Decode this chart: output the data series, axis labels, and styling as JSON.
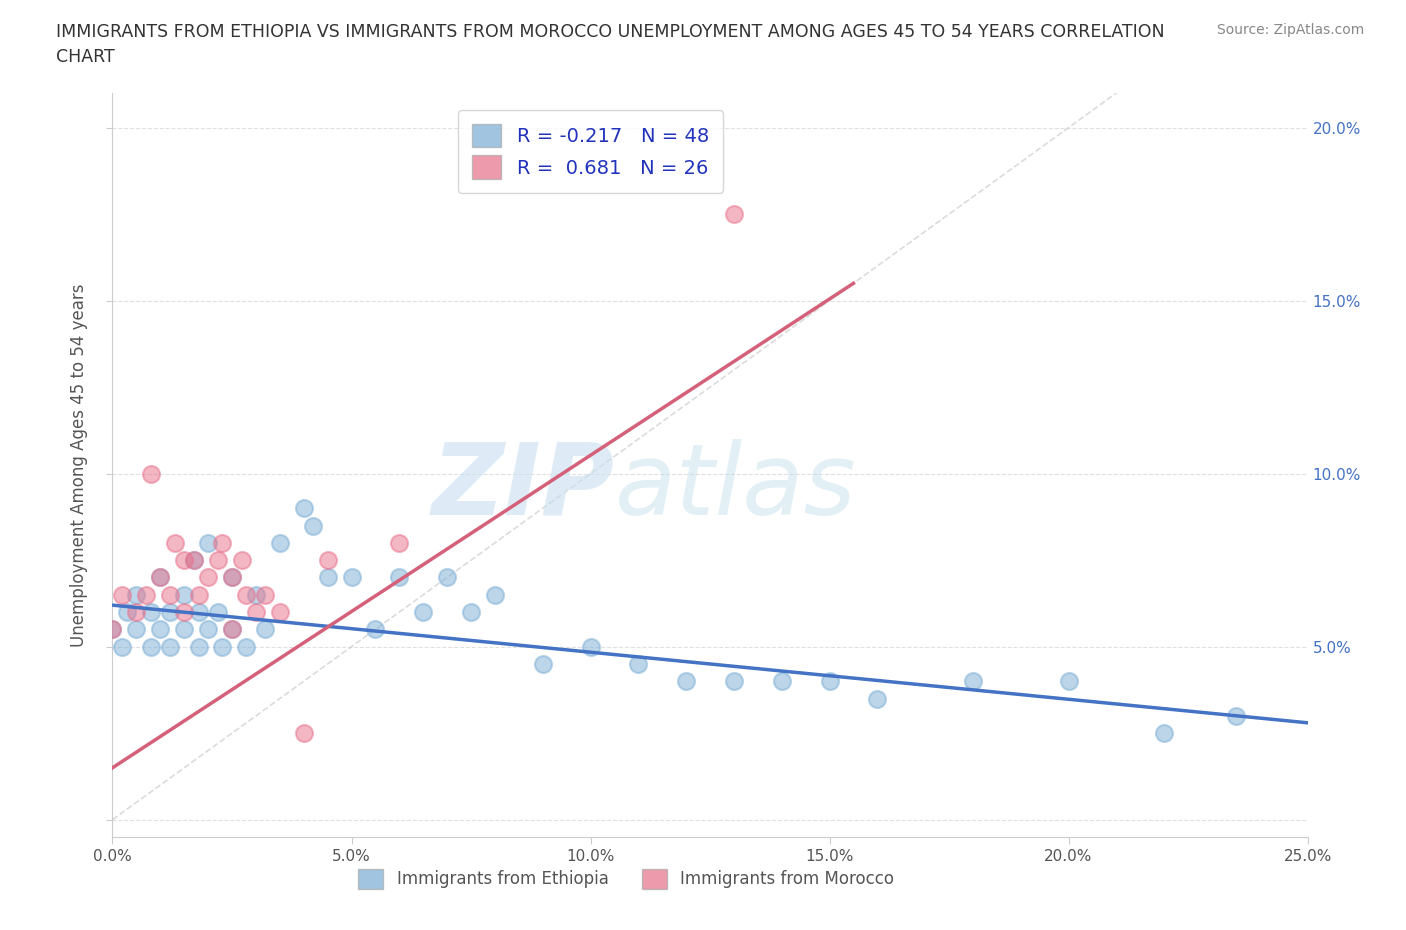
{
  "title_line1": "IMMIGRANTS FROM ETHIOPIA VS IMMIGRANTS FROM MOROCCO UNEMPLOYMENT AMONG AGES 45 TO 54 YEARS CORRELATION",
  "title_line2": "CHART",
  "source": "Source: ZipAtlas.com",
  "ylabel": "Unemployment Among Ages 45 to 54 years",
  "xlim": [
    0.0,
    0.25
  ],
  "ylim": [
    -0.005,
    0.21
  ],
  "xticks": [
    0.0,
    0.05,
    0.1,
    0.15,
    0.2,
    0.25
  ],
  "xticklabels": [
    "0.0%",
    "5.0%",
    "10.0%",
    "15.0%",
    "20.0%",
    "25.0%"
  ],
  "yticks_right": [
    0.05,
    0.1,
    0.15,
    0.2
  ],
  "yticklabels_right": [
    "5.0%",
    "10.0%",
    "15.0%",
    "20.0%"
  ],
  "background_color": "#ffffff",
  "grid_color": "#dddddd",
  "ethiopia_color": "#7aadd4",
  "morocco_color": "#e8708a",
  "ethiopia_line_color": "#4472c4",
  "morocco_line_color": "#d4607a",
  "ref_line_color": "#cccccc",
  "legend_ethiopia_label": "R = -0.217   N = 48",
  "legend_morocco_label": "R =  0.681   N = 26",
  "watermark_zip": "ZIP",
  "watermark_atlas": "atlas",
  "ethiopia_scatter_x": [
    0.0,
    0.002,
    0.003,
    0.005,
    0.005,
    0.008,
    0.008,
    0.01,
    0.01,
    0.012,
    0.012,
    0.015,
    0.015,
    0.017,
    0.018,
    0.018,
    0.02,
    0.02,
    0.022,
    0.023,
    0.025,
    0.025,
    0.028,
    0.03,
    0.032,
    0.035,
    0.04,
    0.042,
    0.045,
    0.05,
    0.055,
    0.06,
    0.065,
    0.07,
    0.075,
    0.08,
    0.09,
    0.1,
    0.11,
    0.12,
    0.13,
    0.14,
    0.15,
    0.16,
    0.18,
    0.2,
    0.22,
    0.235
  ],
  "ethiopia_scatter_y": [
    0.055,
    0.05,
    0.06,
    0.065,
    0.055,
    0.06,
    0.05,
    0.07,
    0.055,
    0.06,
    0.05,
    0.065,
    0.055,
    0.075,
    0.06,
    0.05,
    0.08,
    0.055,
    0.06,
    0.05,
    0.07,
    0.055,
    0.05,
    0.065,
    0.055,
    0.08,
    0.09,
    0.085,
    0.07,
    0.07,
    0.055,
    0.07,
    0.06,
    0.07,
    0.06,
    0.065,
    0.045,
    0.05,
    0.045,
    0.04,
    0.04,
    0.04,
    0.04,
    0.035,
    0.04,
    0.04,
    0.025,
    0.03
  ],
  "morocco_scatter_x": [
    0.0,
    0.002,
    0.005,
    0.007,
    0.008,
    0.01,
    0.012,
    0.013,
    0.015,
    0.015,
    0.017,
    0.018,
    0.02,
    0.022,
    0.023,
    0.025,
    0.025,
    0.027,
    0.028,
    0.03,
    0.032,
    0.035,
    0.04,
    0.045,
    0.06,
    0.13
  ],
  "morocco_scatter_y": [
    0.055,
    0.065,
    0.06,
    0.065,
    0.1,
    0.07,
    0.065,
    0.08,
    0.075,
    0.06,
    0.075,
    0.065,
    0.07,
    0.075,
    0.08,
    0.055,
    0.07,
    0.075,
    0.065,
    0.06,
    0.065,
    0.06,
    0.025,
    0.075,
    0.08,
    0.175
  ],
  "ethiopia_trend_x": [
    0.0,
    0.25
  ],
  "ethiopia_trend_y_start": 0.062,
  "ethiopia_trend_y_end": 0.028,
  "morocco_trend_x_start": 0.0,
  "morocco_trend_x_end": 0.155,
  "morocco_trend_y_start": 0.015,
  "morocco_trend_y_end": 0.155
}
